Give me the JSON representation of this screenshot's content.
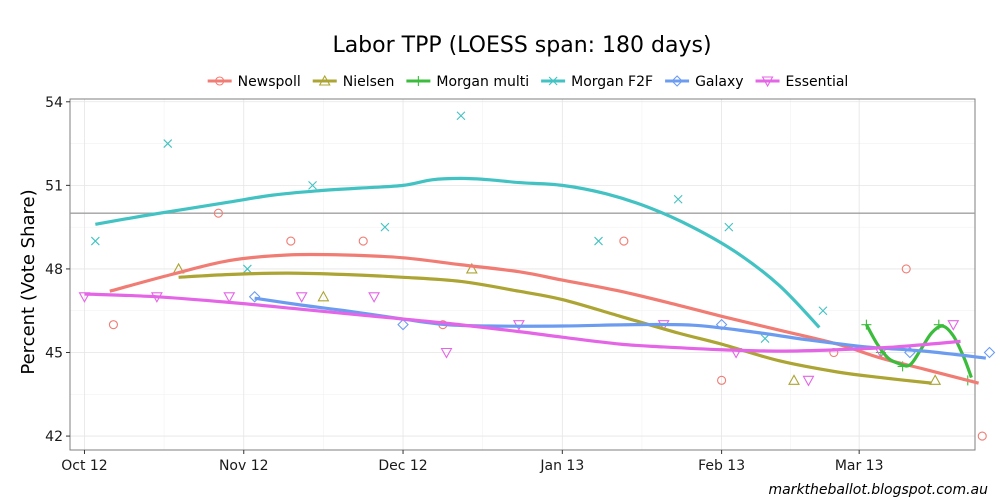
{
  "chart_data": {
    "type": "line",
    "title": "Labor TPP (LOESS span: 180 days)",
    "xlabel": "",
    "ylabel": "Percent (Vote Share)",
    "ylim": [
      41.5,
      54.1
    ],
    "xlim": [
      -2,
      123
    ],
    "x_unit": "days since 1 Oct 2012",
    "x_ticks": [
      {
        "label": "Oct 12",
        "x": 0
      },
      {
        "label": "Nov 12",
        "x": 22
      },
      {
        "label": "Dec 12",
        "x": 44
      },
      {
        "label": "Jan 13",
        "x": 66
      },
      {
        "label": "Feb 13",
        "x": 88
      },
      {
        "label": "Mar 13",
        "x": 107
      }
    ],
    "y_ticks": [
      42,
      45,
      48,
      51,
      54
    ],
    "reference_line": 50,
    "credit": "marktheballot.blogspot.com.au",
    "series": [
      {
        "name": "Newspoll",
        "color": "#f07c74",
        "marker": "circle",
        "points": [
          [
            4,
            46
          ],
          [
            18.5,
            50
          ],
          [
            28.5,
            49
          ],
          [
            38.5,
            49
          ],
          [
            49.5,
            46
          ],
          [
            74.5,
            49
          ],
          [
            88,
            44
          ],
          [
            103.5,
            45
          ],
          [
            113.5,
            48
          ],
          [
            124,
            42
          ]
        ],
        "trend": [
          [
            3.5,
            47.2
          ],
          [
            12,
            47.8
          ],
          [
            20,
            48.3
          ],
          [
            28,
            48.5
          ],
          [
            36,
            48.5
          ],
          [
            44,
            48.4
          ],
          [
            52,
            48.15
          ],
          [
            60,
            47.9
          ],
          [
            66,
            47.6
          ],
          [
            74,
            47.2
          ],
          [
            82,
            46.7
          ],
          [
            88,
            46.3
          ],
          [
            96,
            45.8
          ],
          [
            104,
            45.3
          ],
          [
            110,
            44.8
          ],
          [
            116,
            44.4
          ],
          [
            123.5,
            43.9
          ]
        ]
      },
      {
        "name": "Nielsen",
        "color": "#aca433",
        "marker": "triangle",
        "points": [
          [
            13,
            48
          ],
          [
            33,
            47
          ],
          [
            53.5,
            48
          ],
          [
            98,
            44
          ],
          [
            117.5,
            44
          ]
        ],
        "trend": [
          [
            13,
            47.7
          ],
          [
            20,
            47.8
          ],
          [
            28,
            47.85
          ],
          [
            36,
            47.8
          ],
          [
            44,
            47.7
          ],
          [
            52,
            47.55
          ],
          [
            60,
            47.2
          ],
          [
            66,
            46.9
          ],
          [
            74,
            46.3
          ],
          [
            82,
            45.7
          ],
          [
            88,
            45.3
          ],
          [
            96,
            44.7
          ],
          [
            104,
            44.3
          ],
          [
            110,
            44.1
          ],
          [
            117,
            43.9
          ]
        ]
      },
      {
        "name": "Morgan multi",
        "color": "#3cbc3c",
        "marker": "plus",
        "points": [
          [
            108,
            46
          ],
          [
            110,
            45
          ],
          [
            113,
            44.5
          ],
          [
            118,
            46
          ],
          [
            122,
            44
          ]
        ],
        "trend": [
          [
            108,
            46
          ],
          [
            109.5,
            45.3
          ],
          [
            111,
            44.8
          ],
          [
            112.5,
            44.6
          ],
          [
            114,
            44.55
          ],
          [
            115.5,
            45.1
          ],
          [
            117,
            45.7
          ],
          [
            118.5,
            45.95
          ],
          [
            120,
            45.6
          ],
          [
            121.5,
            44.8
          ],
          [
            122.5,
            44.1
          ]
        ]
      },
      {
        "name": "Morgan F2F",
        "color": "#42c2c2",
        "marker": "x",
        "points": [
          [
            1.5,
            49
          ],
          [
            11.5,
            52.5
          ],
          [
            22.5,
            48
          ],
          [
            31.5,
            51
          ],
          [
            41.5,
            49.5
          ],
          [
            52,
            53.5
          ],
          [
            71,
            49
          ],
          [
            82,
            50.5
          ],
          [
            89,
            49.5
          ],
          [
            94,
            45.5
          ],
          [
            102,
            46.5
          ]
        ],
        "trend": [
          [
            1.5,
            49.6
          ],
          [
            8,
            49.9
          ],
          [
            14,
            50.15
          ],
          [
            20,
            50.4
          ],
          [
            26,
            50.65
          ],
          [
            32,
            50.8
          ],
          [
            38,
            50.9
          ],
          [
            44,
            51
          ],
          [
            48,
            51.2
          ],
          [
            52,
            51.25
          ],
          [
            56,
            51.2
          ],
          [
            60,
            51.1
          ],
          [
            66,
            51
          ],
          [
            72,
            50.7
          ],
          [
            78,
            50.2
          ],
          [
            84,
            49.5
          ],
          [
            90,
            48.6
          ],
          [
            96,
            47.4
          ],
          [
            101.5,
            45.9
          ]
        ]
      },
      {
        "name": "Galaxy",
        "color": "#6c9cf0",
        "marker": "diamond",
        "points": [
          [
            23.5,
            47
          ],
          [
            44,
            46
          ],
          [
            88,
            46
          ],
          [
            114,
            45
          ],
          [
            125,
            45
          ]
        ],
        "trend": [
          [
            23.5,
            46.95
          ],
          [
            30,
            46.7
          ],
          [
            36,
            46.5
          ],
          [
            44,
            46.2
          ],
          [
            50,
            46
          ],
          [
            56,
            45.95
          ],
          [
            66,
            45.95
          ],
          [
            76,
            46
          ],
          [
            84,
            45.98
          ],
          [
            92,
            45.75
          ],
          [
            100,
            45.45
          ],
          [
            108,
            45.2
          ],
          [
            116,
            45.05
          ],
          [
            124.5,
            44.8
          ]
        ]
      },
      {
        "name": "Essential",
        "color": "#e465e6",
        "marker": "triangle-down",
        "points": [
          [
            0,
            47
          ],
          [
            10,
            47
          ],
          [
            20,
            47
          ],
          [
            30,
            47
          ],
          [
            40,
            47
          ],
          [
            50,
            45
          ],
          [
            60,
            46
          ],
          [
            80,
            46
          ],
          [
            90,
            45
          ],
          [
            100,
            44
          ],
          [
            110,
            45
          ],
          [
            120,
            46
          ]
        ],
        "trend": [
          [
            0,
            47.1
          ],
          [
            10,
            47
          ],
          [
            20,
            46.8
          ],
          [
            30,
            46.55
          ],
          [
            40,
            46.3
          ],
          [
            50,
            46.05
          ],
          [
            60,
            45.75
          ],
          [
            66,
            45.55
          ],
          [
            74,
            45.3
          ],
          [
            80,
            45.2
          ],
          [
            88,
            45.1
          ],
          [
            96,
            45.05
          ],
          [
            104,
            45.1
          ],
          [
            112,
            45.2
          ],
          [
            121,
            45.4
          ]
        ]
      }
    ],
    "legend_position": "top"
  }
}
